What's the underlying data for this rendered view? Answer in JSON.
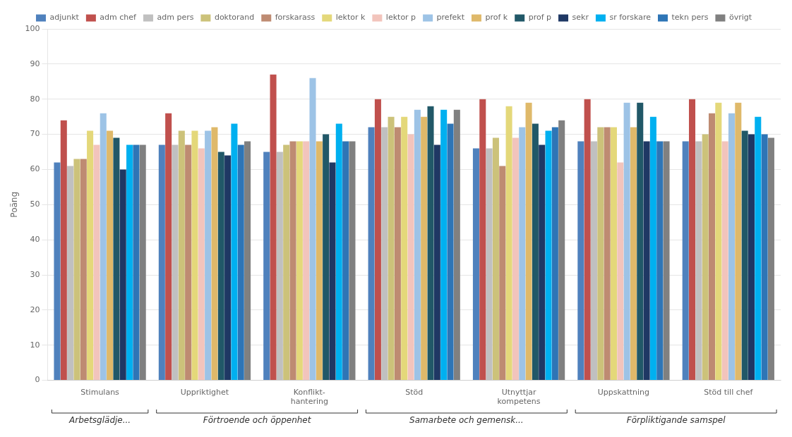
{
  "chart_data": {
    "type": "bar",
    "categories": [
      "Stimulans",
      "Uppriktighet",
      "Konflikt-\nhantering",
      "Stöd",
      "Utnyttjar\nkompetens",
      "Uppskattning",
      "Stöd till chef"
    ],
    "series": [
      {
        "name": "adjunkt",
        "color": "#4F81BD",
        "values": [
          62,
          67,
          65,
          72,
          66,
          68,
          68
        ]
      },
      {
        "name": "adm chef",
        "color": "#C0504D",
        "values": [
          74,
          76,
          87,
          80,
          80,
          80,
          80
        ]
      },
      {
        "name": "adm pers",
        "color": "#C0C0C0",
        "values": [
          61,
          67,
          65,
          72,
          66,
          68,
          68
        ]
      },
      {
        "name": "doktorand",
        "color": "#CCC27A",
        "values": [
          63,
          71,
          67,
          75,
          69,
          72,
          70
        ]
      },
      {
        "name": "forskarass",
        "color": "#BE8B72",
        "values": [
          63,
          67,
          68,
          72,
          61,
          72,
          76
        ]
      },
      {
        "name": "lektor k",
        "color": "#E4D87A",
        "values": [
          71,
          71,
          68,
          75,
          78,
          72,
          79
        ]
      },
      {
        "name": "lektor p",
        "color": "#F2C4BC",
        "values": [
          67,
          66,
          68,
          70,
          69,
          62,
          68
        ]
      },
      {
        "name": "prefekt",
        "color": "#9DC3E6",
        "values": [
          76,
          71,
          86,
          77,
          72,
          79,
          76
        ]
      },
      {
        "name": "prof k",
        "color": "#DFB96A",
        "values": [
          71,
          72,
          68,
          75,
          79,
          72,
          79
        ]
      },
      {
        "name": "prof p",
        "color": "#215868",
        "values": [
          69,
          65,
          70,
          78,
          73,
          79,
          71
        ]
      },
      {
        "name": "sekr",
        "color": "#1F3864",
        "values": [
          60,
          64,
          62,
          67,
          67,
          68,
          70
        ]
      },
      {
        "name": "sr forskare",
        "color": "#00B0F0",
        "values": [
          67,
          73,
          73,
          77,
          71,
          75,
          75
        ]
      },
      {
        "name": "tekn pers",
        "color": "#2E75B6",
        "values": [
          67,
          67,
          68,
          73,
          72,
          68,
          70
        ]
      },
      {
        "name": "övrigt",
        "color": "#808080",
        "values": [
          67,
          68,
          68,
          77,
          74,
          68,
          69
        ]
      }
    ],
    "y_label": "Poäng",
    "ylim": [
      0,
      100
    ],
    "yticks": [
      0,
      10,
      20,
      30,
      40,
      50,
      60,
      70,
      80,
      90,
      100
    ],
    "grid": true,
    "legend": "top",
    "annotations": [
      {
        "text": "Arbetsglädje...",
        "categories": [
          "Stimulans"
        ]
      },
      {
        "text": "Förtroende och öppenhet",
        "categories": [
          "Uppriktighet",
          "Konflikt-\nhantering"
        ]
      },
      {
        "text": "Samarbete och gemensk...",
        "categories": [
          "Stöd",
          "Utnyttjar\nkompetens"
        ]
      },
      {
        "text": "Förpliktigande samspel",
        "categories": [
          "Uppskattning",
          "Stöd till chef"
        ]
      }
    ]
  }
}
